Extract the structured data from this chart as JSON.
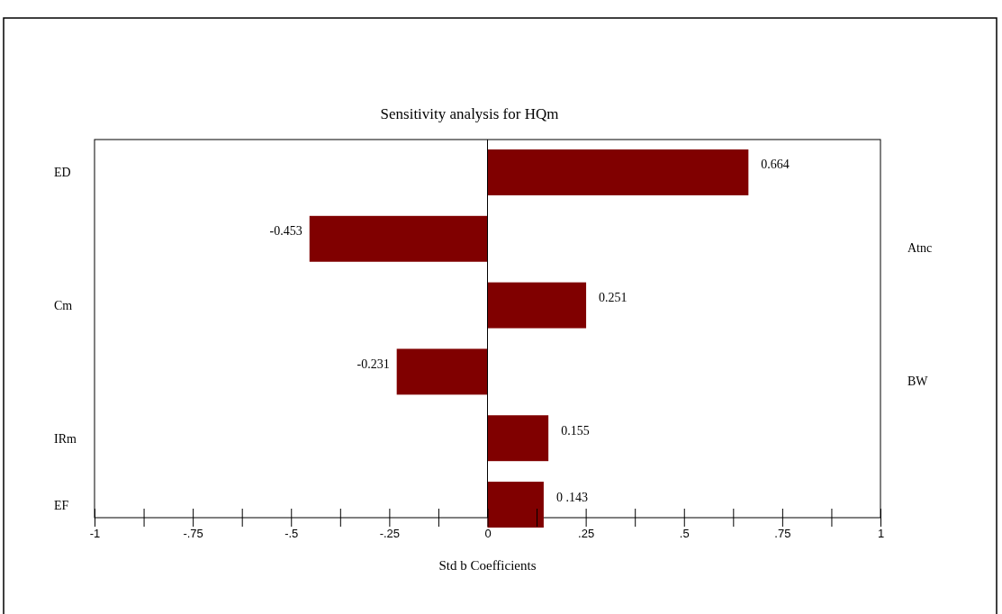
{
  "chart_data": {
    "type": "bar",
    "orientation": "horizontal",
    "title": "Sensitivity analysis for HQm",
    "xlabel": "Std b Coefficients",
    "categories": [
      "ED",
      null,
      "Cm",
      null,
      "IRm",
      "EF"
    ],
    "y2_categories": [
      null,
      "Atnc",
      null,
      "BW",
      null,
      null
    ],
    "values": [
      0.664,
      -0.453,
      0.251,
      -0.231,
      0.155,
      0.143
    ],
    "value_labels": [
      "0.664",
      "-0.453",
      "0.251",
      "-0.231",
      "0.155",
      "0 .143"
    ],
    "color": "#800000",
    "xlim": [
      -1,
      1
    ],
    "xticks": [
      {
        "value": -1,
        "label": "-1"
      },
      {
        "value": -0.875,
        "label": null
      },
      {
        "value": -0.75,
        "label": "-.75"
      },
      {
        "value": -0.625,
        "label": null
      },
      {
        "value": -0.5,
        "label": "-.5"
      },
      {
        "value": -0.375,
        "label": null
      },
      {
        "value": -0.25,
        "label": "-.25"
      },
      {
        "value": -0.125,
        "label": null
      },
      {
        "value": 0,
        "label": "0"
      },
      {
        "value": 0.125,
        "label": null
      },
      {
        "value": 0.25,
        "label": ".25"
      },
      {
        "value": 0.375,
        "label": null
      },
      {
        "value": 0.5,
        "label": ".5"
      },
      {
        "value": 0.625,
        "label": null
      },
      {
        "value": 0.75,
        "label": ".75"
      },
      {
        "value": 0.875,
        "label": null
      },
      {
        "value": 1,
        "label": "1"
      }
    ],
    "ref_lines": [
      {
        "axis": "x",
        "value": 0,
        "color": "#000000"
      }
    ],
    "grid": false
  }
}
